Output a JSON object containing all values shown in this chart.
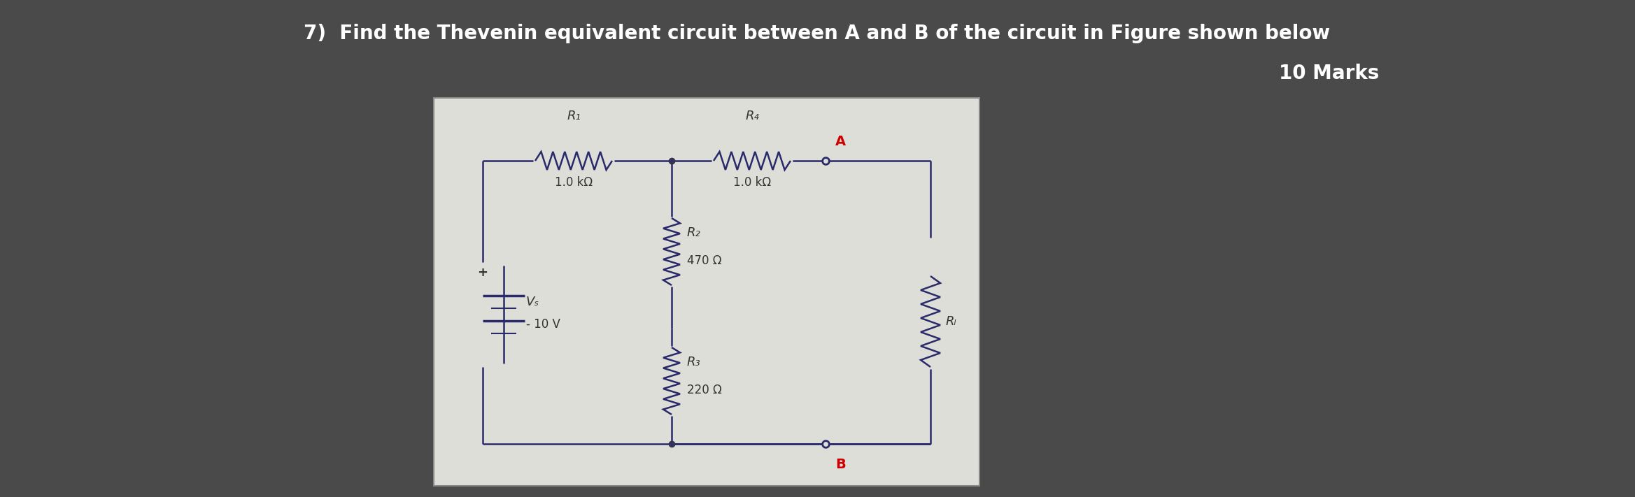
{
  "bg_color": "#4a4a4a",
  "circuit_bg": "#deded8",
  "title_line1": "7)  Find the Thevenin equivalent circuit between A and B of the circuit in Figure shown below",
  "title_line2": "10 Marks",
  "title_color": "#ffffff",
  "title_fontsize": 20,
  "marks_fontsize": 20,
  "R1_label": "R₁",
  "R2_label": "R₂",
  "R3_label": "R₃",
  "R4_label": "R₄",
  "RL_label": "Rₗ",
  "R1_value": "1.0 kΩ",
  "R2_value": "470 Ω",
  "R3_value": "220 Ω",
  "R4_value": "1.0 kΩ",
  "Vs_label": "Vₛ",
  "Vs_value": "10 V",
  "A_label": "A",
  "B_label": "B",
  "wire_color": "#2a2a6a",
  "A_color": "#cc0000",
  "B_color": "#cc0000",
  "label_color": "#333333",
  "node_fill": "#333355"
}
